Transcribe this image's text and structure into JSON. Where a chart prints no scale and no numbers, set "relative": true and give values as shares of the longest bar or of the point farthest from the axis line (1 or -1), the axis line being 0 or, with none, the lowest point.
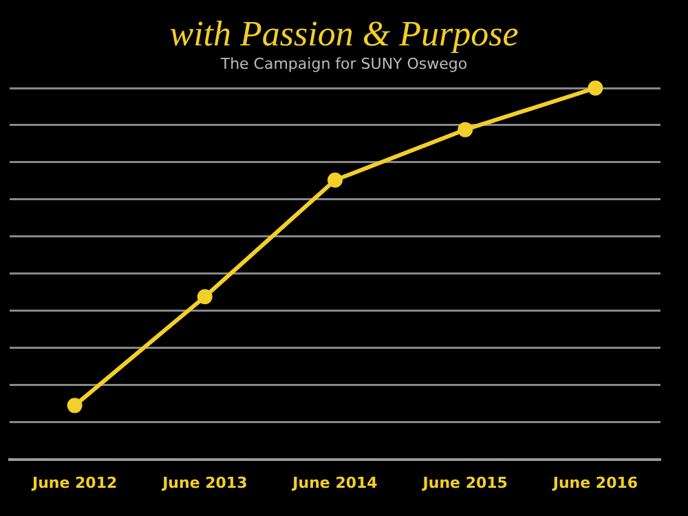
{
  "chart_data": {
    "type": "line",
    "title": "with Passion & Purpose",
    "subtitle": "The Campaign for SUNY Oswego",
    "categories": [
      "June 2012",
      "June 2013",
      "June 2014",
      "June 2015",
      "June 2016"
    ],
    "series": [
      {
        "color": "#f2cf2a",
        "values": [
          0.145,
          0.438,
          0.752,
          0.888,
          1
        ]
      }
    ],
    "relative": true,
    "grid": "y",
    "legend": false,
    "marker": "circle",
    "line_style": "solid"
  }
}
